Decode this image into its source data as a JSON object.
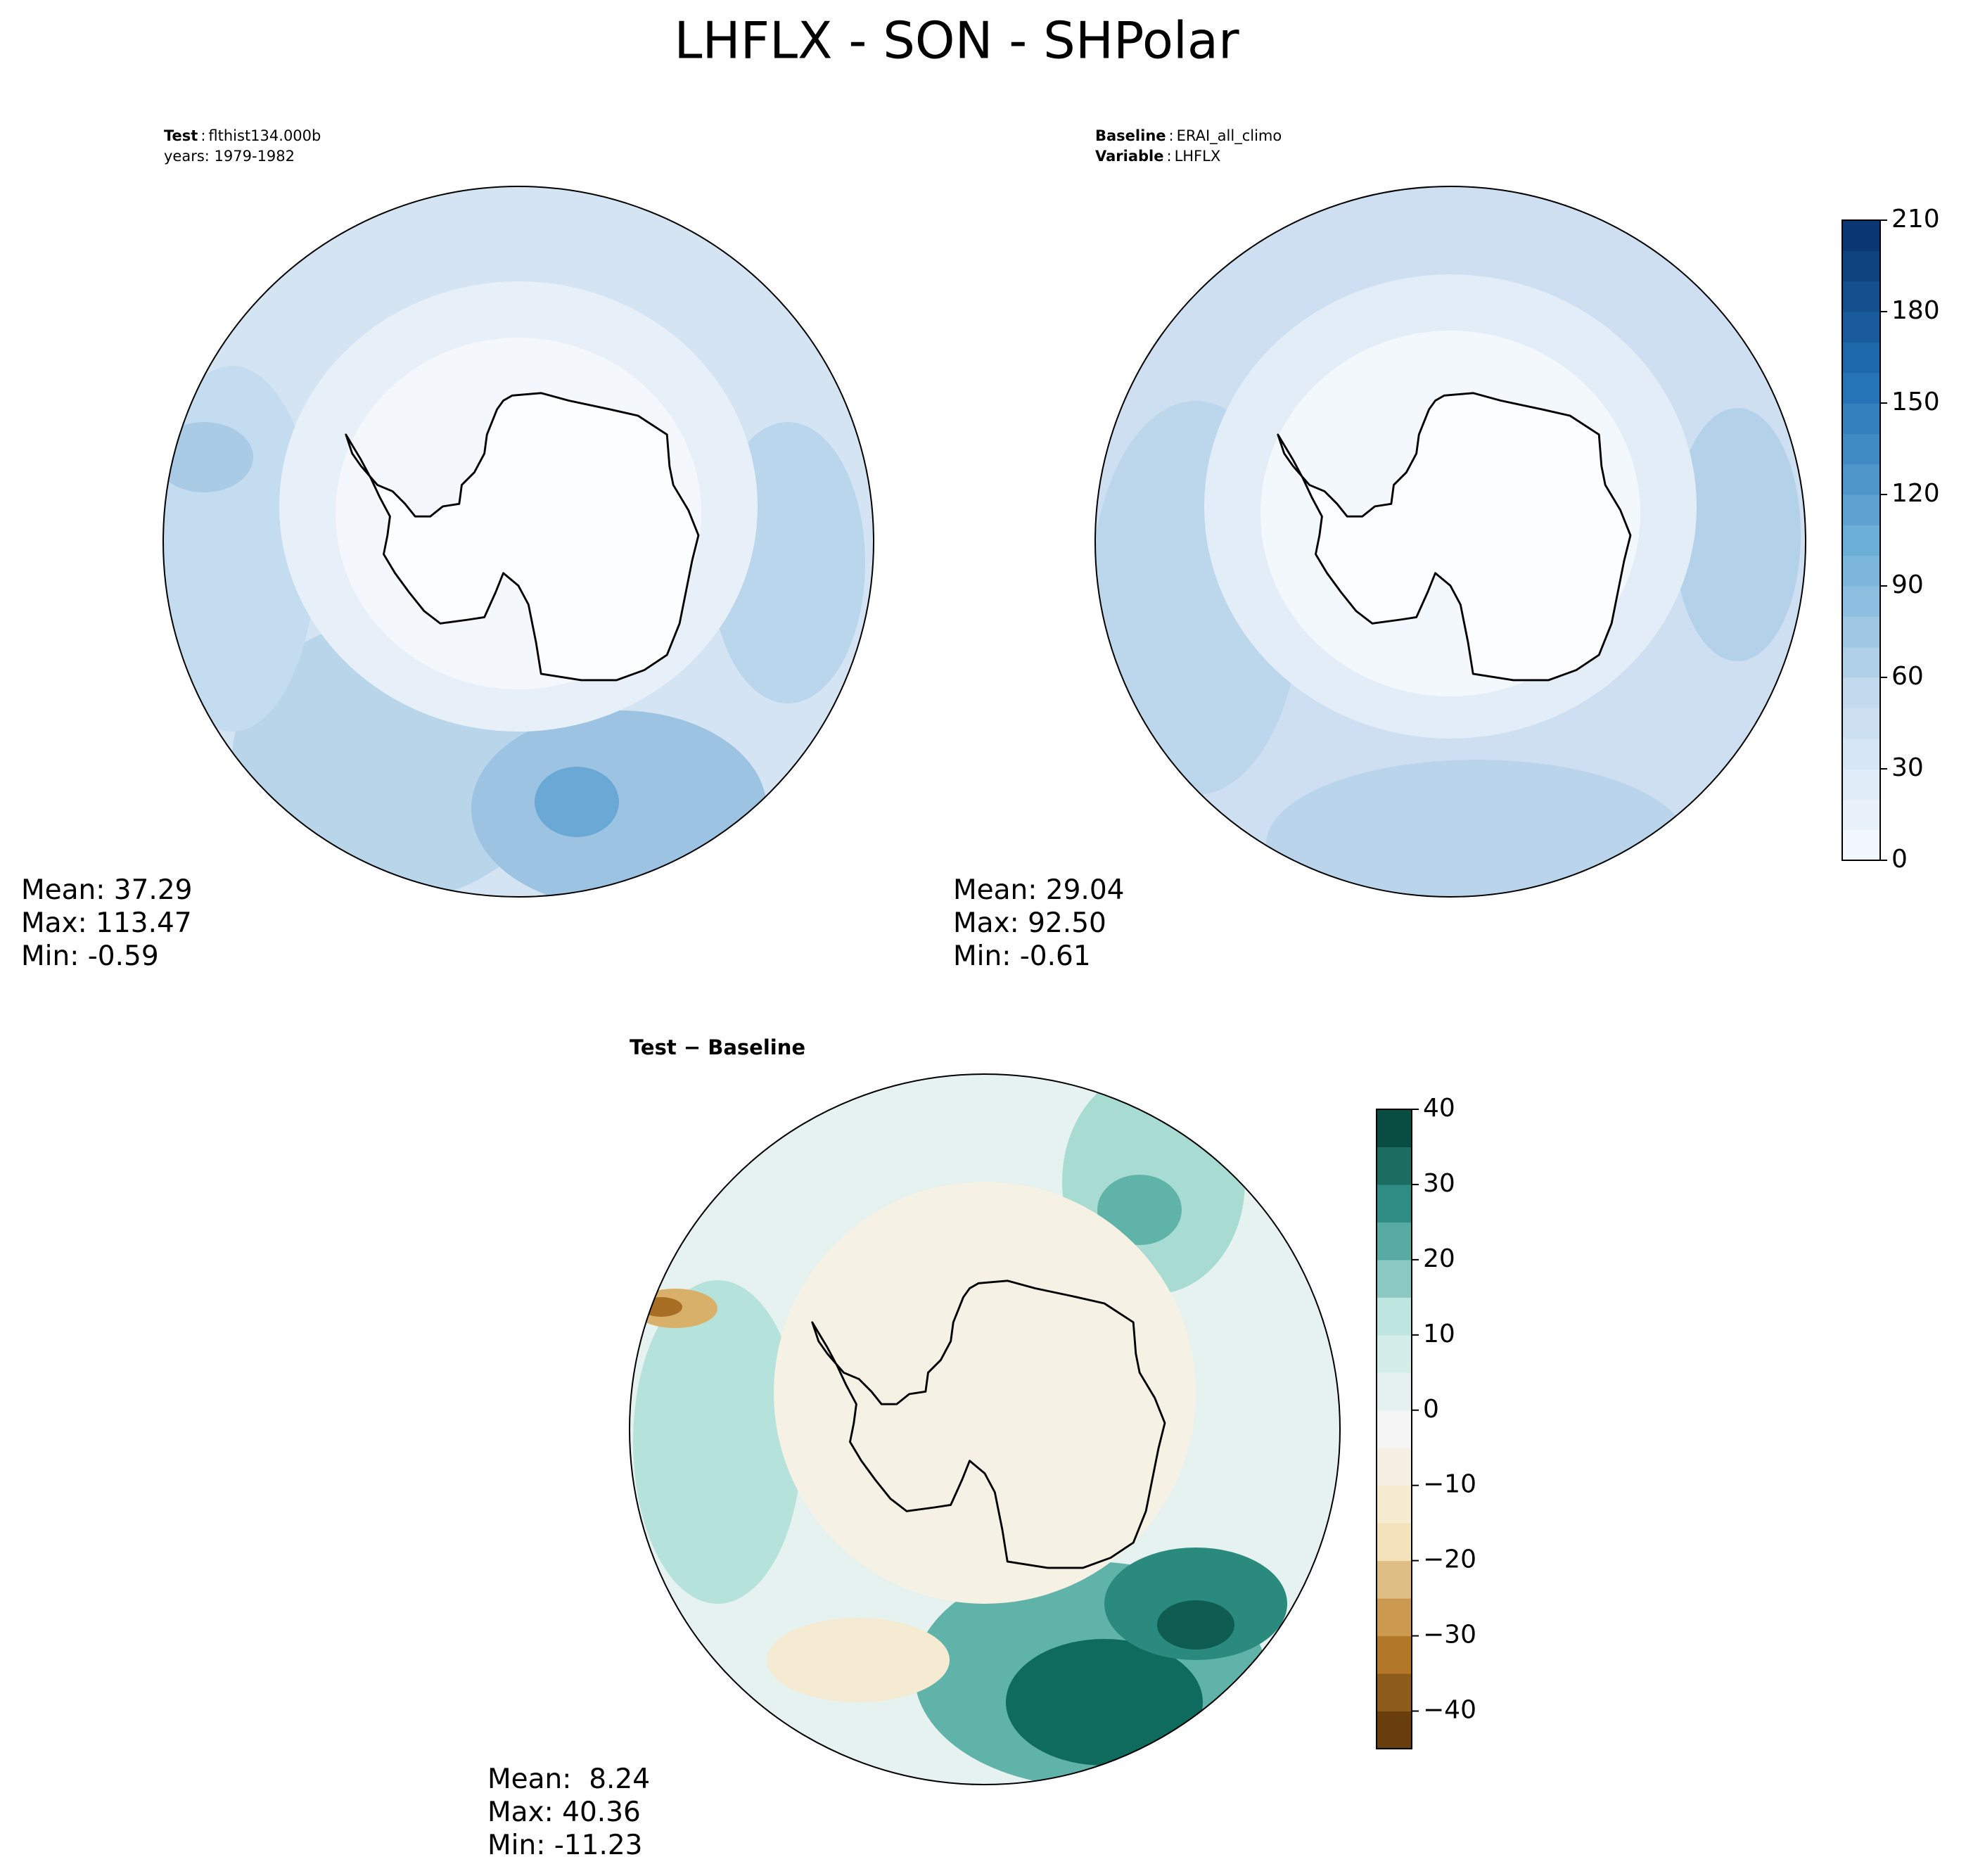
{
  "title": "LHFLX - SON - SHPolar",
  "panels": [
    {
      "annotations": [
        {
          "key": "Test",
          "separator": ":",
          "value": "flthist134.000b"
        },
        {
          "text": "years: 1979-1982"
        }
      ],
      "stats": [
        "Mean: 37.29",
        "Max: 113.47",
        "Min: -0.59"
      ]
    },
    {
      "annotations": [
        {
          "key": "Baseline",
          "separator": ":",
          "value": "ERAI_all_climo"
        },
        {
          "key": "Variable",
          "separator": ":",
          "value": "LHFLX"
        }
      ],
      "stats": [
        "Mean: 29.04",
        "Max: 92.50",
        "Min: -0.61"
      ]
    },
    {
      "title": "Test − Baseline",
      "stats": [
        "Mean:  8.24",
        "Max: 40.36",
        "Min: -11.23"
      ]
    }
  ],
  "colorbars": [
    {
      "clim": [
        0,
        210
      ],
      "step": 10,
      "ticks": [
        0,
        30,
        60,
        90,
        120,
        150,
        180,
        210
      ],
      "cmap": [
        "#f7fbff",
        "#c6dbef",
        "#6baed6",
        "#2171b5",
        "#08306b"
      ]
    },
    {
      "clim": [
        -45,
        40
      ],
      "step": 5,
      "ticks": [
        {
          "value": -40,
          "label": "−40"
        },
        {
          "value": -30,
          "label": "−30"
        },
        {
          "value": -20,
          "label": "−20"
        },
        {
          "value": -10,
          "label": "−10"
        },
        0,
        10,
        20,
        30,
        40
      ],
      "cmap": [
        "#543005",
        "#bf812d",
        "#f6e8c3",
        "#f5f5f5",
        "#c7eae5",
        "#35978f",
        "#003c30"
      ]
    }
  ]
}
